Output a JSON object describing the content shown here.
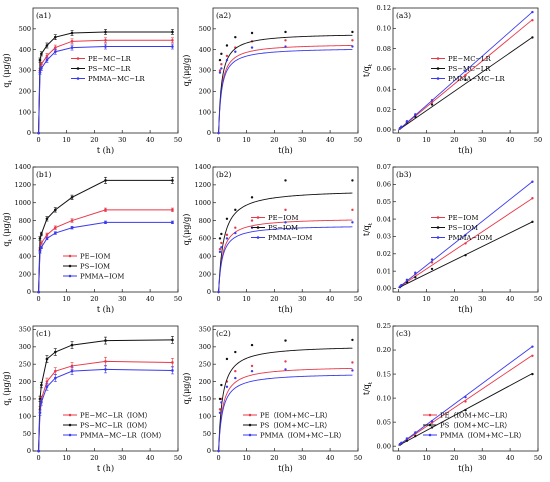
{
  "figure": {
    "background": "#ffffff"
  },
  "colors": {
    "red": "#e8394a",
    "black": "#111111",
    "blue": "#3a3af0"
  },
  "chart_data": [
    {
      "id": "a1",
      "type": "line",
      "panel_label": "(a1)",
      "xlabel": "t (h)",
      "ylabel": "q_t (μg/g)",
      "xlim": [
        -2,
        50
      ],
      "ylim": [
        0,
        600
      ],
      "xticks": [
        0,
        10,
        20,
        30,
        40,
        50
      ],
      "yticks": [
        0,
        100,
        200,
        300,
        400,
        500
      ],
      "x": [
        0,
        0.5,
        1,
        3,
        6,
        12,
        24,
        48
      ],
      "legend_position": "middle-right",
      "error_bars": true,
      "series": [
        {
          "name": "PE−MC−LR",
          "color": "red",
          "values": [
            0,
            300,
            330,
            370,
            410,
            440,
            445,
            445
          ],
          "err": [
            0,
            10,
            10,
            12,
            12,
            12,
            12,
            12
          ]
        },
        {
          "name": "PS−MC−LR",
          "color": "black",
          "values": [
            0,
            350,
            380,
            420,
            460,
            480,
            485,
            485
          ],
          "err": [
            0,
            10,
            10,
            12,
            12,
            12,
            12,
            12
          ]
        },
        {
          "name": "PMMA−MC−LR",
          "color": "blue",
          "values": [
            0,
            290,
            310,
            350,
            390,
            410,
            415,
            415
          ],
          "err": [
            0,
            10,
            10,
            12,
            12,
            12,
            12,
            12
          ]
        }
      ]
    },
    {
      "id": "a2",
      "type": "scatter",
      "panel_label": "(a2)",
      "xlabel": "t(h)",
      "ylabel": "q_t(μg/g)",
      "xlim": [
        -2,
        50
      ],
      "ylim": [
        0,
        600
      ],
      "xticks": [
        0,
        10,
        20,
        30,
        40,
        50
      ],
      "yticks": [
        0,
        100,
        200,
        300,
        400,
        500
      ],
      "x": [
        0,
        0.5,
        1,
        3,
        6,
        12,
        24,
        48
      ],
      "series": [
        {
          "color": "red",
          "values": [
            0,
            300,
            330,
            370,
            410,
            440,
            445,
            445
          ],
          "fit": {
            "qe": 430,
            "k": 0.9
          }
        },
        {
          "color": "black",
          "values": [
            0,
            350,
            380,
            420,
            460,
            480,
            485,
            485
          ],
          "fit": {
            "qe": 480,
            "k": 0.9
          }
        },
        {
          "color": "blue",
          "values": [
            0,
            290,
            310,
            350,
            390,
            410,
            415,
            415
          ],
          "fit": {
            "qe": 410,
            "k": 0.9
          }
        }
      ]
    },
    {
      "id": "a3",
      "type": "scatter",
      "panel_label": "(a3)",
      "xlabel": "t(h)",
      "ylabel": "t/q_t",
      "xlim": [
        -2,
        50
      ],
      "ylim": [
        -0.003,
        0.12
      ],
      "xticks": [
        0,
        10,
        20,
        30,
        40,
        50
      ],
      "yticks": [
        0,
        0.02,
        0.04,
        0.06,
        0.08,
        0.1,
        0.12
      ],
      "ytick_labels": [
        "0.00",
        "0.02",
        "0.04",
        "0.06",
        "0.08",
        "0.10",
        "0.12"
      ],
      "x": [
        0.5,
        1,
        3,
        6,
        12,
        24,
        48
      ],
      "legend_position": "middle-right",
      "series": [
        {
          "name": "PE−MC−LR",
          "color": "red",
          "values": [
            0.0017,
            0.003,
            0.0081,
            0.0146,
            0.0273,
            0.054,
            0.108
          ],
          "line": [
            0,
            0.00226
          ]
        },
        {
          "name": "PS−MC−LR",
          "color": "black",
          "values": [
            0.0014,
            0.0026,
            0.0071,
            0.013,
            0.025,
            0.0495,
            0.091
          ],
          "line": [
            0,
            0.0019
          ]
        },
        {
          "name": "PMMA−MC−LR",
          "color": "blue",
          "values": [
            0.0017,
            0.0032,
            0.0086,
            0.0154,
            0.0293,
            0.0578,
            0.116
          ],
          "line": [
            0,
            0.00242
          ]
        }
      ]
    },
    {
      "id": "b1",
      "type": "line",
      "panel_label": "(b1)",
      "xlabel": "t (h)",
      "ylabel": "q_t (μg/g)",
      "xlim": [
        -2,
        50
      ],
      "ylim": [
        0,
        1400
      ],
      "xticks": [
        0,
        10,
        20,
        30,
        40,
        50
      ],
      "yticks": [
        0,
        200,
        400,
        600,
        800,
        1000,
        1200,
        1400
      ],
      "x": [
        0,
        0.5,
        1,
        3,
        6,
        12,
        24,
        48
      ],
      "legend_position": "lower-right",
      "error_bars": true,
      "series": [
        {
          "name": "PE−IOM",
          "color": "red",
          "values": [
            0,
            480,
            550,
            640,
            720,
            800,
            920,
            920
          ],
          "err": [
            0,
            15,
            15,
            20,
            20,
            20,
            20,
            20
          ]
        },
        {
          "name": "PS−IOM",
          "color": "black",
          "values": [
            0,
            600,
            650,
            820,
            920,
            1060,
            1250,
            1250
          ],
          "err": [
            0,
            20,
            20,
            25,
            25,
            25,
            35,
            35
          ]
        },
        {
          "name": "PMMA−IOM",
          "color": "blue",
          "values": [
            0,
            450,
            500,
            600,
            660,
            720,
            780,
            780
          ],
          "err": [
            0,
            15,
            15,
            15,
            15,
            15,
            15,
            15
          ]
        }
      ]
    },
    {
      "id": "b2",
      "type": "scatter",
      "panel_label": "(b2)",
      "xlabel": "t(h)",
      "ylabel": "q_t(μg/g)",
      "xlim": [
        -2,
        50
      ],
      "ylim": [
        0,
        1400
      ],
      "xticks": [
        0,
        10,
        20,
        30,
        40,
        50
      ],
      "yticks": [
        0,
        200,
        400,
        600,
        800,
        1000,
        1200,
        1400
      ],
      "x": [
        0,
        0.5,
        1,
        3,
        6,
        12,
        24,
        48
      ],
      "legend_position": "middle-right",
      "series": [
        {
          "name": "PE−IOM",
          "color": "red",
          "values": [
            0,
            480,
            550,
            640,
            720,
            800,
            920,
            920
          ],
          "fit": {
            "qe": 830,
            "k": 0.7
          }
        },
        {
          "name": "PS−IOM",
          "color": "black",
          "values": [
            0,
            600,
            650,
            820,
            920,
            1060,
            1250,
            1250
          ],
          "fit": {
            "qe": 1150,
            "k": 0.55
          }
        },
        {
          "name": "PMMA−IOM",
          "color": "blue",
          "values": [
            0,
            450,
            500,
            600,
            660,
            720,
            780,
            780
          ],
          "fit": {
            "qe": 750,
            "k": 0.75
          }
        }
      ]
    },
    {
      "id": "b3",
      "type": "scatter",
      "panel_label": "(b3)",
      "xlabel": "t(h)",
      "ylabel": "t/q_t",
      "xlim": [
        -2,
        50
      ],
      "ylim": [
        -0.002,
        0.07
      ],
      "xticks": [
        0,
        10,
        20,
        30,
        40,
        50
      ],
      "yticks": [
        0,
        0.01,
        0.02,
        0.03,
        0.04,
        0.05,
        0.06,
        0.07
      ],
      "ytick_labels": [
        "0.00",
        "0.01",
        "0.02",
        "0.03",
        "0.04",
        "0.05",
        "0.06",
        "0.07"
      ],
      "x": [
        0.5,
        1,
        3,
        6,
        12,
        24,
        48
      ],
      "legend_position": "middle-right",
      "series": [
        {
          "name": "PE−IOM",
          "color": "red",
          "values": [
            0.001,
            0.0018,
            0.0047,
            0.0083,
            0.015,
            0.026,
            0.052
          ],
          "line": [
            0.0006,
            0.00107
          ]
        },
        {
          "name": "PS−IOM",
          "color": "black",
          "values": [
            0.0008,
            0.0015,
            0.0037,
            0.0065,
            0.0113,
            0.0192,
            0.0384
          ],
          "line": [
            0.0005,
            0.00079
          ]
        },
        {
          "name": "PMMA−IOM",
          "color": "blue",
          "values": [
            0.0011,
            0.002,
            0.005,
            0.0091,
            0.0167,
            0.0308,
            0.0615
          ],
          "line": [
            0.0006,
            0.00127
          ]
        }
      ]
    },
    {
      "id": "c1",
      "type": "line",
      "panel_label": "(c1)",
      "xlabel": "t (h)",
      "ylabel": "q_t (μg/g)",
      "xlim": [
        -2,
        50
      ],
      "ylim": [
        0,
        360
      ],
      "xticks": [
        0,
        10,
        20,
        30,
        40,
        50
      ],
      "yticks": [
        0,
        50,
        100,
        150,
        200,
        250,
        300,
        350
      ],
      "x": [
        0,
        0.5,
        1,
        3,
        6,
        12,
        24,
        48
      ],
      "legend_position": "lower-right",
      "error_bars": true,
      "series": [
        {
          "name": "PE−MC−LR（IOM）",
          "color": "red",
          "values": [
            0,
            120,
            150,
            200,
            230,
            245,
            258,
            255
          ],
          "err": [
            0,
            8,
            8,
            10,
            10,
            10,
            12,
            12
          ]
        },
        {
          "name": "PS−MC−LR（IOM）",
          "color": "black",
          "values": [
            0,
            150,
            190,
            265,
            285,
            305,
            318,
            320
          ],
          "err": [
            0,
            8,
            8,
            10,
            10,
            10,
            10,
            10
          ]
        },
        {
          "name": "PMMA−MC−LR（IOM）",
          "color": "blue",
          "values": [
            0,
            110,
            140,
            185,
            210,
            230,
            235,
            232
          ],
          "err": [
            0,
            8,
            8,
            10,
            10,
            10,
            10,
            10
          ]
        }
      ]
    },
    {
      "id": "c2",
      "type": "scatter",
      "panel_label": "(c2)",
      "xlabel": "t(h)",
      "ylabel": "q_t(μg/g)",
      "xlim": [
        -2,
        50
      ],
      "ylim": [
        0,
        360
      ],
      "xticks": [
        0,
        10,
        20,
        30,
        40,
        50
      ],
      "yticks": [
        0,
        50,
        100,
        150,
        200,
        250,
        300,
        350
      ],
      "x": [
        0,
        0.5,
        1,
        3,
        6,
        12,
        24,
        48
      ],
      "legend_position": "lower-right",
      "series": [
        {
          "name": "PE（IOM+MC−LR）",
          "color": "red",
          "values": [
            0,
            120,
            150,
            200,
            230,
            245,
            258,
            255
          ],
          "fit": {
            "qe": 245,
            "k": 0.7
          }
        },
        {
          "name": "PS（IOM+MC−LR）",
          "color": "black",
          "values": [
            0,
            150,
            190,
            265,
            285,
            305,
            318,
            320
          ],
          "fit": {
            "qe": 305,
            "k": 0.7
          }
        },
        {
          "name": "PMMA（IOM+MC−LR）",
          "color": "blue",
          "values": [
            0,
            110,
            140,
            185,
            210,
            230,
            235,
            232
          ],
          "fit": {
            "qe": 225,
            "k": 0.7
          }
        }
      ]
    },
    {
      "id": "c3",
      "type": "scatter",
      "panel_label": "(c3)",
      "xlabel": "t(h)",
      "ylabel": "t/q_t",
      "xlim": [
        -2,
        50
      ],
      "ylim": [
        -0.01,
        0.25
      ],
      "xticks": [
        0,
        10,
        20,
        30,
        40,
        50
      ],
      "yticks": [
        0,
        0.05,
        0.1,
        0.15,
        0.2,
        0.25
      ],
      "ytick_labels": [
        "0.00",
        "0.05",
        "0.10",
        "0.15",
        "0.20",
        "0.25"
      ],
      "x": [
        0.5,
        1,
        3,
        6,
        12,
        24,
        48
      ],
      "legend_position": "lower-right",
      "series": [
        {
          "name": "PE（IOM+MC−LR）",
          "color": "red",
          "values": [
            0.0042,
            0.0067,
            0.015,
            0.026,
            0.049,
            0.093,
            0.188
          ],
          "line": [
            0.002,
            0.0039
          ]
        },
        {
          "name": "PS（IOM+MC−LR）",
          "color": "black",
          "values": [
            0.0033,
            0.0053,
            0.0113,
            0.021,
            0.039,
            0.075,
            0.15
          ],
          "line": [
            0.0015,
            0.00312
          ]
        },
        {
          "name": "PMMA（IOM+MC−LR）",
          "color": "blue",
          "values": [
            0.0045,
            0.0071,
            0.0162,
            0.0286,
            0.052,
            0.102,
            0.207
          ],
          "line": [
            0.002,
            0.00428
          ]
        }
      ]
    }
  ]
}
